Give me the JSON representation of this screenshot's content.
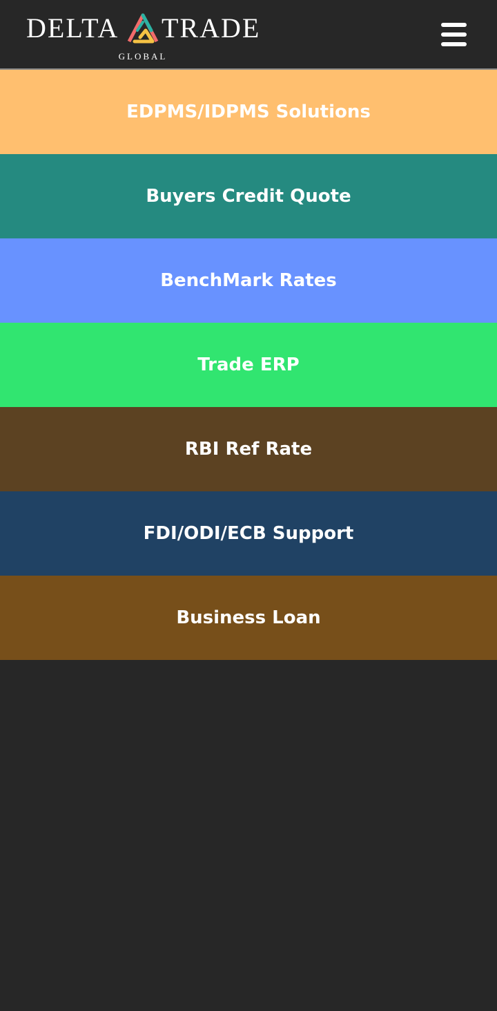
{
  "header": {
    "logo": {
      "word_left": "DELTA",
      "word_right": "TRADE",
      "subtitle": "GLOBAL",
      "mark_colors": [
        "#2bb3a3",
        "#f26b6b",
        "#f5c244"
      ]
    },
    "menu_icon": "hamburger-menu-icon"
  },
  "menu": {
    "items": [
      {
        "label": "EDPMS/IDPMS Solutions",
        "color": "#ffbf6f"
      },
      {
        "label": "Buyers Credit Quote",
        "color": "#258a80"
      },
      {
        "label": "BenchMark Rates",
        "color": "#6892ff"
      },
      {
        "label": "Trade ERP",
        "color": "#31e570"
      },
      {
        "label": "RBI Ref Rate",
        "color": "#5c4222"
      },
      {
        "label": "FDI/ODI/ECB Support",
        "color": "#204264"
      },
      {
        "label": "Business Loan",
        "color": "#774f1a"
      }
    ]
  }
}
